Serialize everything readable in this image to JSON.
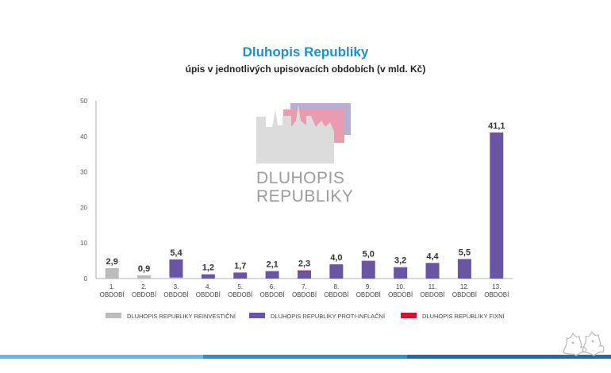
{
  "chart_data": {
    "type": "bar",
    "stacked": true,
    "title": "Dluhopis Republiky",
    "subtitle": "úpis v jednotlivých upisovacích obdobích (v mld. Kč)",
    "xlabel": "",
    "ylabel": "",
    "ylim": [
      0,
      50
    ],
    "yticks": [
      0,
      10,
      20,
      30,
      40,
      50
    ],
    "grid": false,
    "legend_position": "bottom",
    "categories": [
      [
        "1.",
        "OBDOBÍ"
      ],
      [
        "2.",
        "OBDOBÍ"
      ],
      [
        "3.",
        "OBDOBÍ"
      ],
      [
        "4.",
        "OBDOBÍ"
      ],
      [
        "5.",
        "OBDOBÍ"
      ],
      [
        "6.",
        "OBDOBÍ"
      ],
      [
        "7.",
        "OBDOBÍ"
      ],
      [
        "8.",
        "OBDOBÍ"
      ],
      [
        "9.",
        "OBDOBÍ"
      ],
      [
        "10.",
        "OBDOBÍ"
      ],
      [
        "11.",
        "OBDOBÍ"
      ],
      [
        "12.",
        "OBDOBÍ"
      ],
      [
        "13.",
        "OBDOBÍ"
      ]
    ],
    "series": [
      {
        "name": "DLUHOPIS REPUBLIKY REINVESTIČNÍ",
        "color": "#bcbcbc",
        "values": [
          2.9,
          0.9,
          0.3,
          0,
          0,
          0,
          0,
          0,
          0,
          0,
          0,
          0,
          0
        ]
      },
      {
        "name": "DLUHOPIS REPUBLIKY PROTI-INFLAČNÍ",
        "color": "#6a55a5",
        "values": [
          0,
          0,
          5.1,
          1.2,
          1.7,
          2.1,
          2.0,
          4.0,
          5.0,
          3.2,
          4.4,
          5.5,
          41.1
        ]
      },
      {
        "name": "DLUHOPIS REPUBLIKY FIXNÍ",
        "color": "#d7102e",
        "values": [
          0,
          0,
          0,
          0,
          0,
          0,
          0.3,
          0,
          0,
          0,
          0,
          0,
          0
        ]
      }
    ],
    "totals": [
      "2,9",
      "0,9",
      "5,4",
      "1,2",
      "1,7",
      "2,1",
      "2,3",
      "4,0",
      "5,0",
      "3,2",
      "4,4",
      "5,5",
      "41,1"
    ]
  },
  "watermark": {
    "line1": "DLUHOPIS",
    "line2": "REPUBLIKY"
  },
  "footer_colors": [
    "#62b9e6",
    "#2c8fcf",
    "#1f6aa8"
  ]
}
